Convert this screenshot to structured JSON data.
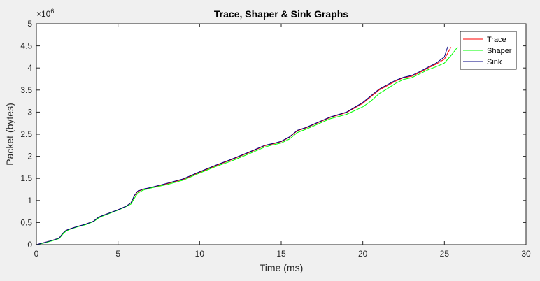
{
  "chart_data": {
    "type": "line",
    "title": "Trace, Shaper & Sink Graphs",
    "xlabel": "Time (ms)",
    "ylabel": "Packet (bytes)",
    "y_exponent_label": "×10",
    "y_exponent_value": "6",
    "xlim": [
      0,
      30
    ],
    "ylim": [
      0,
      5000000
    ],
    "x_ticks": [
      0,
      5,
      10,
      15,
      20,
      25,
      30
    ],
    "x_tick_labels": [
      "0",
      "5",
      "10",
      "15",
      "20",
      "25",
      "30"
    ],
    "y_ticks": [
      0,
      500000,
      1000000,
      1500000,
      2000000,
      2500000,
      3000000,
      3500000,
      4000000,
      4500000,
      5000000
    ],
    "y_tick_labels": [
      "0",
      "0.5",
      "1",
      "1.5",
      "2",
      "2.5",
      "3",
      "3.5",
      "4",
      "4.5",
      "5"
    ],
    "grid": false,
    "legend_position": "top-right",
    "series": [
      {
        "name": "Trace",
        "color": "#ff0000",
        "x": [
          0,
          0.5,
          1.0,
          1.4,
          1.6,
          1.8,
          2.0,
          2.5,
          3.0,
          3.5,
          3.8,
          4.0,
          4.5,
          5.0,
          5.5,
          5.8,
          6.0,
          6.2,
          6.5,
          7.0,
          8.0,
          9.0,
          10.0,
          11.0,
          12.0,
          13.0,
          14.0,
          14.5,
          15.0,
          15.5,
          16.0,
          16.5,
          17.0,
          17.5,
          18.0,
          19.0,
          20.0,
          20.5,
          21.0,
          21.5,
          22.0,
          22.5,
          23.0,
          23.5,
          24.0,
          24.5,
          25.0,
          25.4
        ],
        "y": [
          0,
          50000,
          100000,
          150000,
          250000,
          320000,
          350000,
          410000,
          460000,
          530000,
          620000,
          650000,
          720000,
          790000,
          870000,
          950000,
          1100000,
          1200000,
          1250000,
          1290000,
          1380000,
          1480000,
          1640000,
          1790000,
          1930000,
          2080000,
          2240000,
          2280000,
          2330000,
          2430000,
          2580000,
          2640000,
          2720000,
          2800000,
          2880000,
          2990000,
          3200000,
          3350000,
          3500000,
          3600000,
          3700000,
          3780000,
          3810000,
          3900000,
          4000000,
          4090000,
          4200000,
          4470000
        ]
      },
      {
        "name": "Shaper",
        "color": "#00ff00",
        "x": [
          0,
          0.5,
          1.0,
          1.4,
          1.6,
          1.8,
          2.0,
          2.5,
          3.0,
          3.5,
          3.8,
          4.0,
          4.5,
          5.0,
          5.5,
          5.8,
          6.0,
          6.2,
          6.5,
          7.0,
          8.0,
          9.0,
          10.0,
          11.0,
          12.0,
          13.0,
          14.0,
          14.5,
          15.0,
          15.5,
          16.0,
          16.5,
          17.0,
          17.5,
          18.0,
          19.0,
          20.0,
          20.5,
          21.0,
          21.5,
          22.0,
          22.5,
          23.0,
          23.5,
          24.0,
          24.5,
          25.0,
          25.4,
          25.8
        ],
        "y": [
          0,
          40000,
          90000,
          140000,
          230000,
          300000,
          340000,
          400000,
          450000,
          520000,
          600000,
          640000,
          710000,
          780000,
          860000,
          920000,
          1050000,
          1160000,
          1230000,
          1280000,
          1360000,
          1460000,
          1620000,
          1770000,
          1900000,
          2050000,
          2210000,
          2260000,
          2300000,
          2390000,
          2540000,
          2610000,
          2690000,
          2770000,
          2850000,
          2950000,
          3120000,
          3250000,
          3420000,
          3530000,
          3650000,
          3740000,
          3780000,
          3870000,
          3960000,
          4030000,
          4110000,
          4280000,
          4470000
        ]
      },
      {
        "name": "Sink",
        "color": "#000080",
        "x": [
          0,
          0.5,
          1.0,
          1.4,
          1.6,
          1.8,
          2.0,
          2.5,
          3.0,
          3.5,
          3.8,
          4.0,
          4.5,
          5.0,
          5.5,
          5.8,
          6.0,
          6.2,
          6.5,
          7.0,
          8.0,
          9.0,
          10.0,
          11.0,
          12.0,
          13.0,
          14.0,
          14.5,
          15.0,
          15.5,
          16.0,
          16.5,
          17.0,
          17.5,
          18.0,
          19.0,
          20.0,
          20.5,
          21.0,
          21.5,
          22.0,
          22.5,
          23.0,
          23.5,
          24.0,
          24.5,
          25.0,
          25.2
        ],
        "y": [
          0,
          50000,
          100000,
          150000,
          250000,
          320000,
          350000,
          410000,
          460000,
          530000,
          620000,
          650000,
          720000,
          790000,
          870000,
          950000,
          1110000,
          1210000,
          1255000,
          1295000,
          1390000,
          1490000,
          1650000,
          1800000,
          1940000,
          2090000,
          2250000,
          2290000,
          2340000,
          2440000,
          2590000,
          2650000,
          2730000,
          2810000,
          2890000,
          3000000,
          3220000,
          3370000,
          3520000,
          3620000,
          3720000,
          3790000,
          3830000,
          3920000,
          4020000,
          4110000,
          4250000,
          4480000
        ]
      }
    ]
  }
}
